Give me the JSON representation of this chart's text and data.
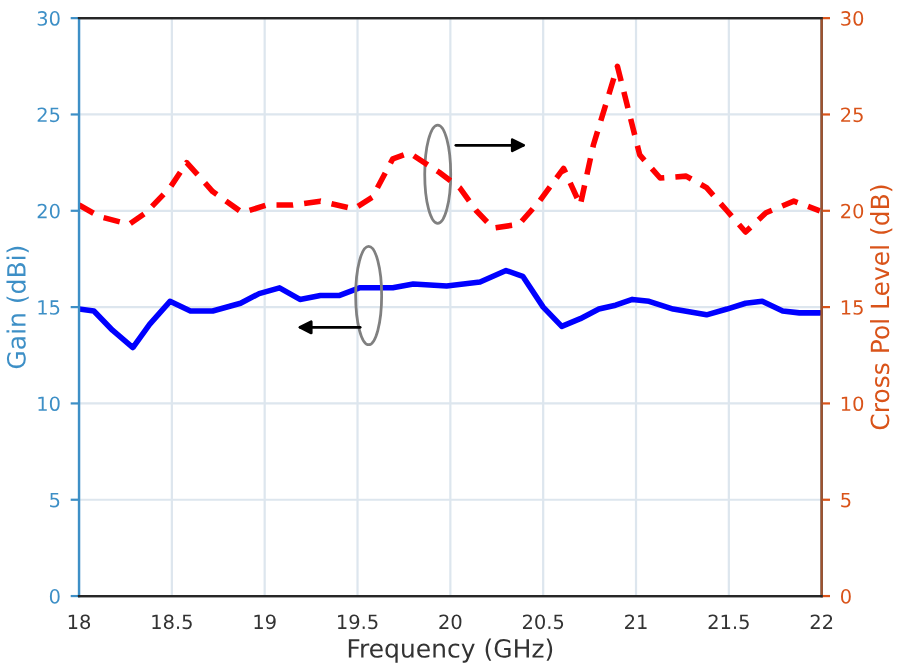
{
  "chart_data": {
    "type": "line",
    "xlabel": "Frequency (GHz)",
    "ylabel": "Gain (dBi)",
    "y2label": "Cross Pol Level (dB)",
    "xlim": [
      18,
      22
    ],
    "xticks": [
      18,
      18.5,
      19,
      19.5,
      20,
      20.5,
      21,
      21.5,
      22
    ],
    "ylim": [
      0,
      30
    ],
    "yticks": [
      0,
      5,
      10,
      15,
      20,
      25,
      30
    ],
    "y2lim": [
      0,
      30
    ],
    "y2ticks": [
      0,
      5,
      10,
      15,
      20,
      25,
      30
    ],
    "grid": true,
    "legend": false,
    "series": [
      {
        "color": "#0000ff",
        "line_style": "solid",
        "x": [
          18.0,
          18.08,
          18.18,
          18.29,
          18.38,
          18.49,
          18.6,
          18.72,
          18.87,
          18.97,
          19.08,
          19.19,
          19.3,
          19.4,
          19.51,
          19.69,
          19.8,
          19.98,
          20.16,
          20.3,
          20.39,
          20.5,
          20.6,
          20.7,
          20.8,
          20.89,
          20.98,
          21.07,
          21.2,
          21.38,
          21.49,
          21.59,
          21.68,
          21.79,
          21.88,
          21.99
        ],
        "values": [
          14.9,
          14.8,
          13.8,
          12.9,
          14.1,
          15.3,
          14.8,
          14.8,
          15.2,
          15.7,
          16.0,
          15.4,
          15.6,
          15.6,
          16.0,
          16.0,
          16.2,
          16.1,
          16.3,
          16.9,
          16.6,
          15.0,
          14.0,
          14.4,
          14.9,
          15.1,
          15.4,
          15.3,
          14.9,
          14.6,
          14.9,
          15.2,
          15.3,
          14.8,
          14.7,
          14.7
        ]
      },
      {
        "color": "#ff0000",
        "line_style": "dashed",
        "axis": "y2",
        "x": [
          18.0,
          18.11,
          18.27,
          18.36,
          18.49,
          18.58,
          18.72,
          18.88,
          19.01,
          19.15,
          19.3,
          19.48,
          19.58,
          19.69,
          19.78,
          19.94,
          20.05,
          20.14,
          20.23,
          20.37,
          20.48,
          20.61,
          20.7,
          20.77,
          20.9,
          21.02,
          21.13,
          21.27,
          21.38,
          21.49,
          21.59,
          21.7,
          21.85,
          21.99
        ],
        "values": [
          20.3,
          19.7,
          19.3,
          19.9,
          21.2,
          22.5,
          21.0,
          19.9,
          20.3,
          20.3,
          20.5,
          20.1,
          20.7,
          22.7,
          23.0,
          22.0,
          21.2,
          20.0,
          19.1,
          19.3,
          20.5,
          22.2,
          20.3,
          23.4,
          27.5,
          22.9,
          21.7,
          21.8,
          21.2,
          20.0,
          18.9,
          19.9,
          20.5,
          20.0
        ]
      }
    ]
  }
}
